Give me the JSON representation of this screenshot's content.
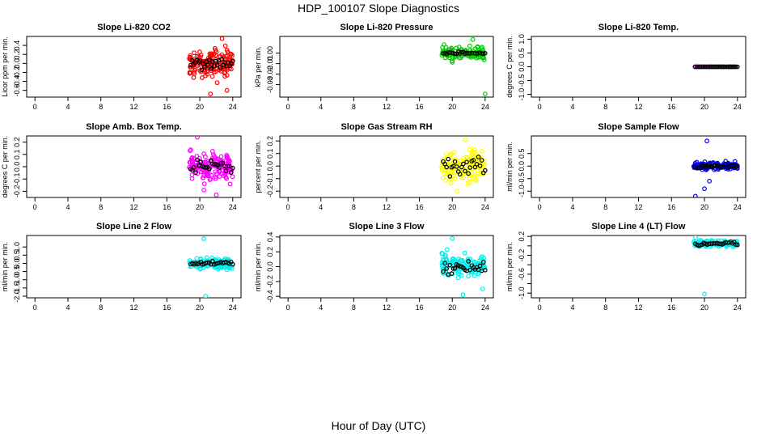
{
  "figure": {
    "title": "HDP_100107  Slope Diagnostics",
    "xlabel": "Hour of Day (UTC)"
  },
  "chart_data": [
    {
      "type": "scatter",
      "title": "Slope Li-820 CO2",
      "ylabel": "Licor ppm per min.",
      "xlim": [
        -1,
        25
      ],
      "xticks": [
        0,
        4,
        8,
        12,
        16,
        20,
        24
      ],
      "ylim": [
        -0.75,
        0.6
      ],
      "yticks": [
        -0.6,
        -0.4,
        -0.2,
        0.0,
        0.2,
        0.4
      ],
      "ytick_labels": [
        "-0.6",
        "-0.4",
        "-0.2",
        "0.0",
        "0.2",
        "0.4"
      ],
      "color": "#ff0000",
      "x_range": [
        18.7,
        24.0
      ],
      "center": 0.0,
      "spread": 0.28,
      "n": 150,
      "outliers": [
        [
          22.7,
          0.55
        ],
        [
          21.3,
          -0.68
        ],
        [
          23.3,
          -0.6
        ]
      ],
      "black": {
        "n": 28,
        "center": 0.0,
        "spread": 0.12
      }
    },
    {
      "type": "scatter",
      "title": "Slope Li-820 Pressure",
      "ylabel": "kPa per min.",
      "xlim": [
        -1,
        25
      ],
      "xticks": [
        0,
        4,
        8,
        12,
        16,
        20,
        24
      ],
      "ylim": [
        -0.042,
        0.016
      ],
      "yticks": [
        -0.03,
        -0.02,
        -0.01,
        0.0
      ],
      "ytick_labels": [
        "-0.03",
        "-0.02",
        "-0.01",
        "0.00"
      ],
      "color": "#00cc00",
      "x_range": [
        18.7,
        24.0
      ],
      "center": 0.0,
      "spread": 0.006,
      "n": 120,
      "outliers": [
        [
          24.0,
          -0.039
        ],
        [
          22.5,
          0.013
        ]
      ],
      "black": {
        "n": 26,
        "center": 0.0,
        "spread": 0.001
      }
    },
    {
      "type": "scatter",
      "title": "Slope Li-820 Temp.",
      "ylabel": "degrees C per min.",
      "xlim": [
        -1,
        25
      ],
      "xticks": [
        0,
        4,
        8,
        12,
        16,
        20,
        24
      ],
      "ylim": [
        -1.1,
        1.1
      ],
      "yticks": [
        -1.0,
        -0.5,
        0.0,
        0.5,
        1.0
      ],
      "ytick_labels": [
        "-1.0",
        "-0.5",
        "0.0",
        "0.5",
        "1.0"
      ],
      "color": "#ff00ff",
      "x_range": [
        18.7,
        24.0
      ],
      "center": 0.0,
      "spread": 0.0,
      "n": 60,
      "outliers": [],
      "black": {
        "n": 28,
        "center": 0.0,
        "spread": 0.0
      }
    },
    {
      "type": "scatter",
      "title": "Slope Amb. Box Temp.",
      "ylabel": "degrees C per min.",
      "xlim": [
        -1,
        25
      ],
      "xticks": [
        0,
        4,
        8,
        12,
        16,
        20,
        24
      ],
      "ylim": [
        -0.25,
        0.25
      ],
      "yticks": [
        -0.2,
        -0.1,
        0.0,
        0.1,
        0.2
      ],
      "ytick_labels": [
        "-0.2",
        "-0.1",
        "0.0",
        "0.1",
        "0.2"
      ],
      "color": "#ff00ff",
      "x_range": [
        18.7,
        24.0
      ],
      "center": 0.0,
      "spread": 0.11,
      "n": 150,
      "outliers": [
        [
          19.7,
          0.24
        ],
        [
          22.0,
          -0.23
        ],
        [
          20.5,
          -0.19
        ]
      ],
      "black": {
        "n": 26,
        "center": 0.0,
        "spread": 0.05
      }
    },
    {
      "type": "scatter",
      "title": "Slope Gas Stream RH",
      "ylabel": "percent per min.",
      "xlim": [
        -1,
        25
      ],
      "xticks": [
        0,
        4,
        8,
        12,
        16,
        20,
        24
      ],
      "ylim": [
        -0.25,
        0.24
      ],
      "yticks": [
        -0.2,
        -0.1,
        0.0,
        0.1,
        0.2
      ],
      "ytick_labels": [
        "-0.2",
        "-0.1",
        "0.0",
        "0.1",
        "0.2"
      ],
      "color": "#ffff00",
      "x_range": [
        18.7,
        24.0
      ],
      "center": 0.0,
      "spread": 0.11,
      "n": 150,
      "outliers": [
        [
          20.6,
          -0.2
        ],
        [
          21.6,
          0.21
        ]
      ],
      "black": {
        "n": 26,
        "center": 0.0,
        "spread": 0.08
      }
    },
    {
      "type": "scatter",
      "title": "Slope Sample Flow",
      "ylabel": "ml/min per min.",
      "xlim": [
        -1,
        25
      ],
      "xticks": [
        0,
        4,
        8,
        12,
        16,
        20,
        24
      ],
      "ylim": [
        -1.25,
        1.2
      ],
      "yticks": [
        -1.0,
        -0.5,
        0.0,
        0.5
      ],
      "ytick_labels": [
        "-1.0",
        "-0.5",
        "0.0",
        "0.5"
      ],
      "color": "#0000ff",
      "x_range": [
        18.7,
        24.0
      ],
      "center": 0.0,
      "spread": 0.14,
      "n": 140,
      "outliers": [
        [
          18.9,
          -1.2
        ],
        [
          20.3,
          1.0
        ],
        [
          20.0,
          -0.9
        ],
        [
          20.6,
          -0.6
        ]
      ],
      "black": {
        "n": 26,
        "center": 0.0,
        "spread": 0.08
      }
    },
    {
      "type": "scatter",
      "title": "Slope Line 2 Flow",
      "ylabel": "ml/min per min.",
      "xlim": [
        -1,
        25
      ],
      "xticks": [
        0,
        4,
        8,
        12,
        16,
        20,
        24
      ],
      "ylim": [
        -2.1,
        1.7
      ],
      "yticks": [
        -2.0,
        -1.5,
        -1.0,
        -0.5,
        0.0,
        0.5,
        1.0
      ],
      "ytick_labels": [
        "-2.0",
        "-1.5",
        "-1.0",
        "-0.5",
        "0.0",
        "0.5",
        "1.0"
      ],
      "color": "#00eeee",
      "x_range": [
        18.7,
        24.0
      ],
      "center": 0.0,
      "spread": 0.3,
      "n": 140,
      "outliers": [
        [
          20.5,
          1.5
        ],
        [
          20.7,
          -2.0
        ]
      ],
      "black": {
        "n": 26,
        "center": 0.0,
        "spread": 0.1
      }
    },
    {
      "type": "scatter",
      "title": "Slope Line 3 Flow",
      "ylabel": "ml/min per min.",
      "xlim": [
        -1,
        25
      ],
      "xticks": [
        0,
        4,
        8,
        12,
        16,
        20,
        24
      ],
      "ylim": [
        -0.42,
        0.42
      ],
      "yticks": [
        -0.4,
        -0.2,
        0.0,
        0.2,
        0.4
      ],
      "ytick_labels": [
        "-0.4",
        "-0.2",
        "0.0",
        "0.2",
        "0.4"
      ],
      "color": "#00eeee",
      "x_range": [
        18.7,
        24.0
      ],
      "center": 0.02,
      "spread": 0.14,
      "n": 130,
      "outliers": [
        [
          20.0,
          0.38
        ],
        [
          21.3,
          -0.38
        ],
        [
          23.7,
          -0.3
        ]
      ],
      "black": {
        "n": 26,
        "center": 0.0,
        "spread": 0.1
      }
    },
    {
      "type": "scatter",
      "title": "Slope Line 4 (LT) Flow",
      "ylabel": "ml/min per min.",
      "xlim": [
        -1,
        25
      ],
      "xticks": [
        0,
        4,
        8,
        12,
        16,
        20,
        24
      ],
      "ylim": [
        -1.1,
        0.22
      ],
      "yticks": [
        -1.0,
        -0.8,
        -0.6,
        -0.4,
        -0.2,
        0.0,
        0.2
      ],
      "ytick_labels": [
        "-1.0",
        "",
        "-0.6",
        "",
        "-0.2",
        "",
        "0.2"
      ],
      "color": "#00eeee",
      "x_range": [
        18.7,
        24.0
      ],
      "center": 0.05,
      "spread": 0.06,
      "n": 120,
      "outliers": [
        [
          20.0,
          -1.02
        ],
        [
          18.9,
          0.18
        ]
      ],
      "black": {
        "n": 26,
        "center": 0.05,
        "spread": 0.04
      }
    }
  ]
}
